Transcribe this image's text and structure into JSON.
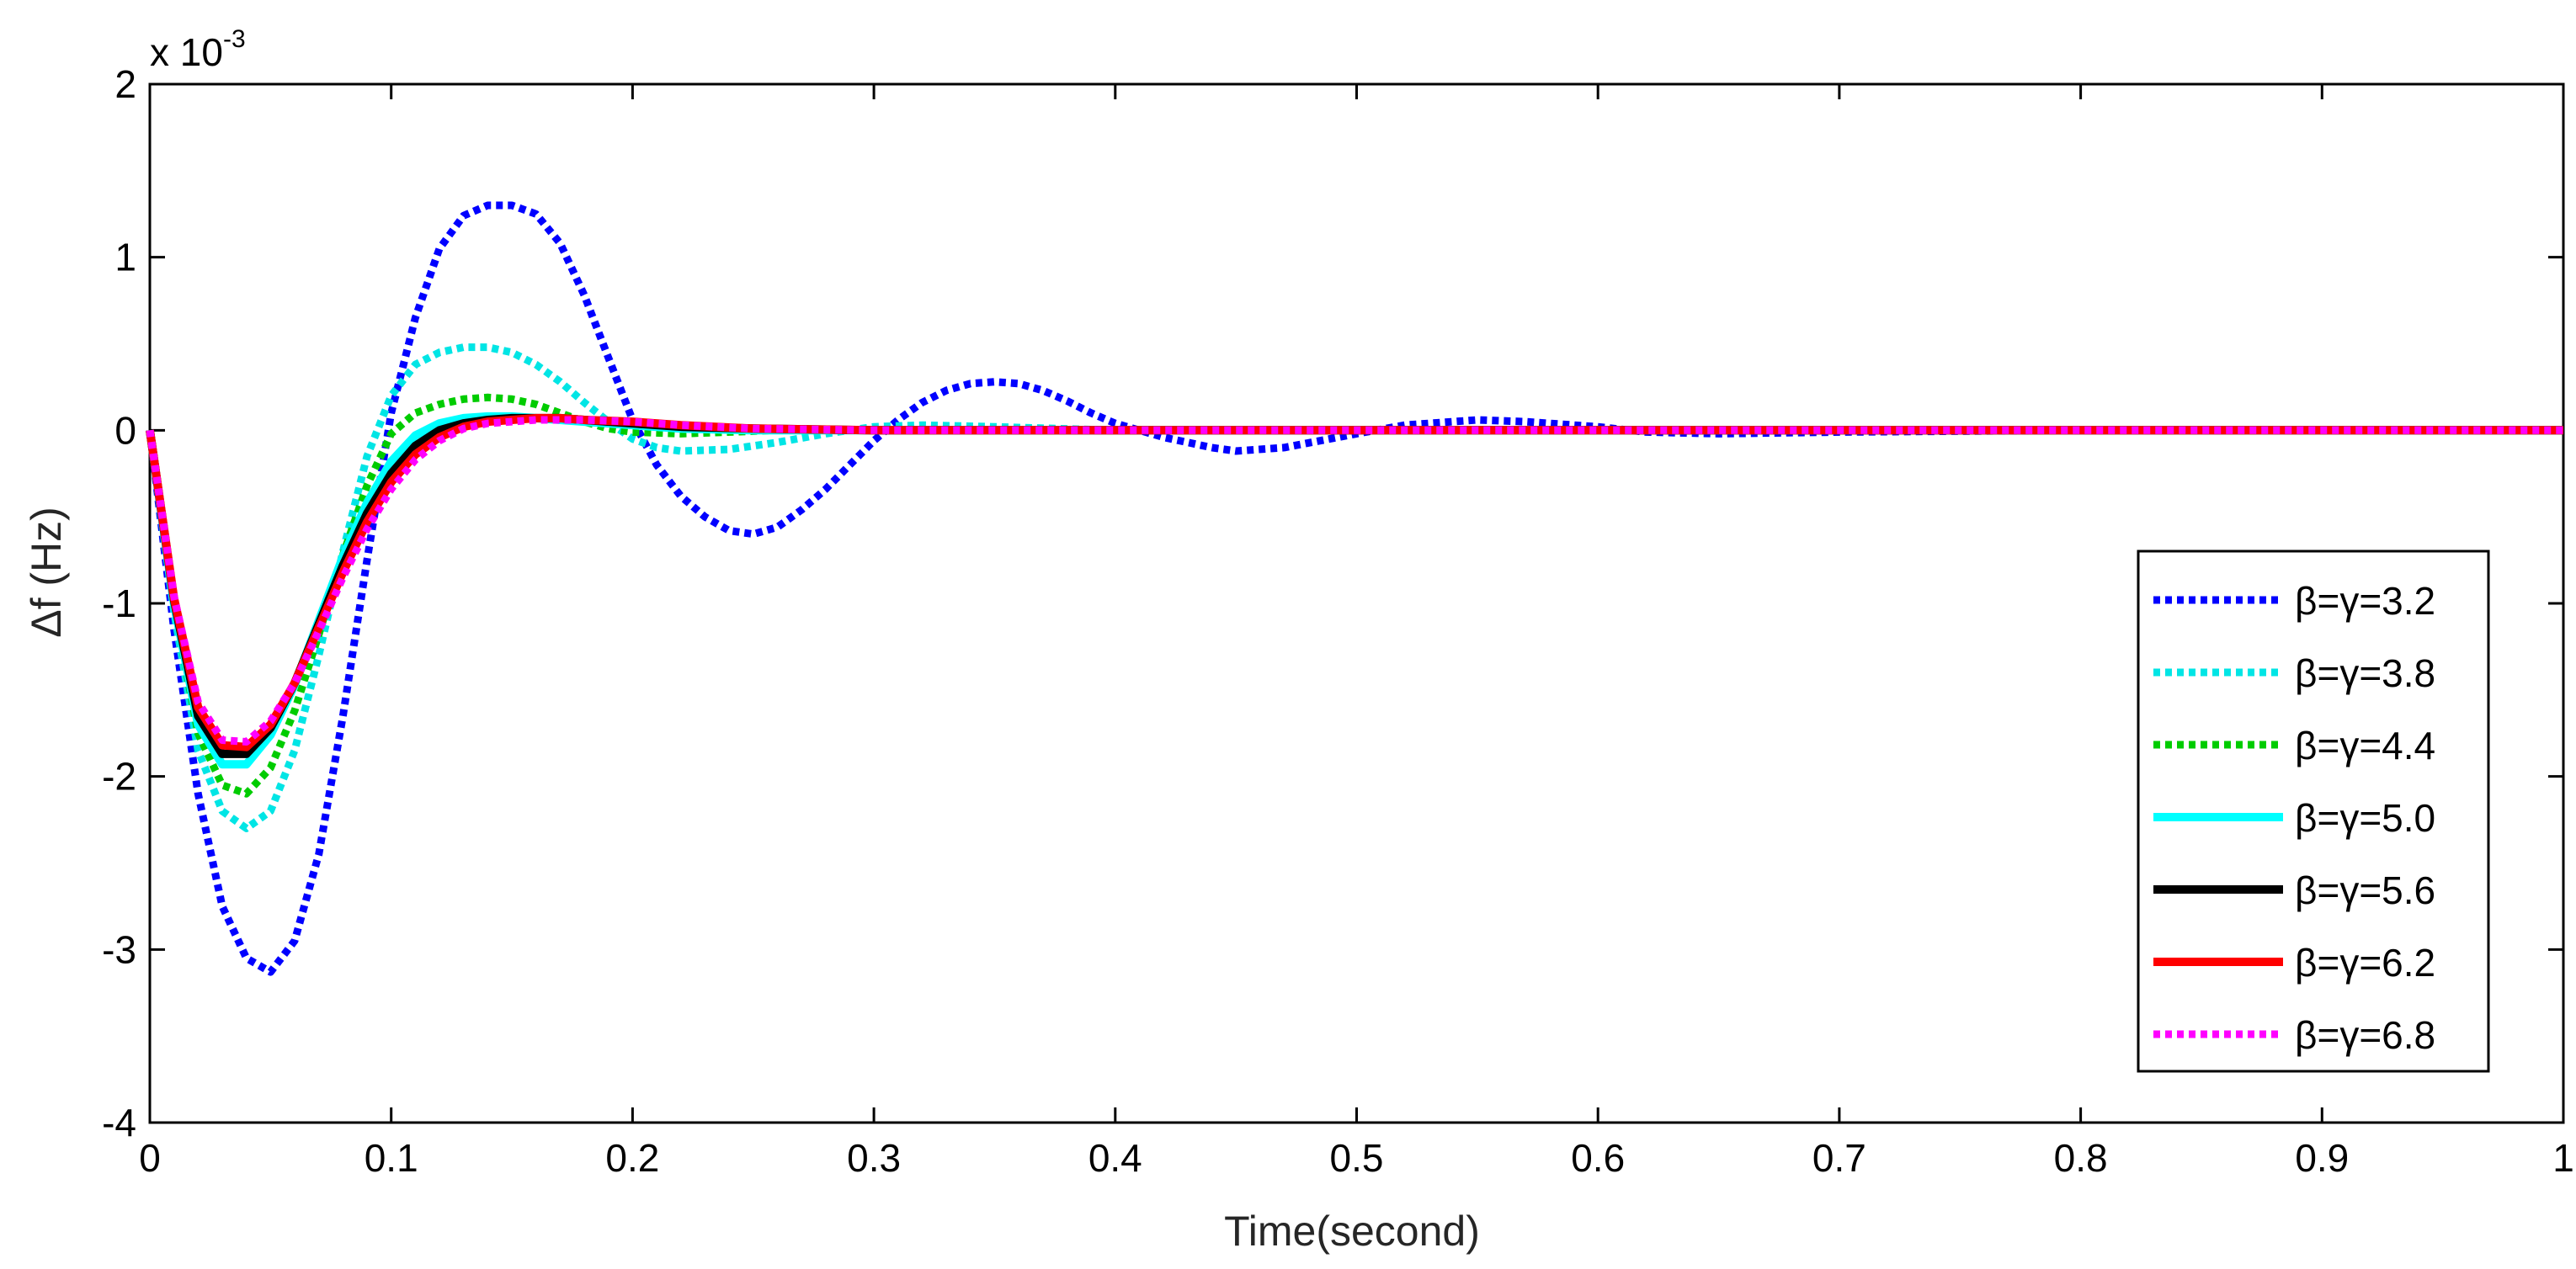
{
  "chart_data": {
    "type": "line",
    "xlabel": "Time(second)",
    "ylabel": "Δf (Hz)",
    "y_multiplier": {
      "base": "x 10",
      "exponent": "-3"
    },
    "xlim": [
      0,
      1
    ],
    "ylim": [
      -4,
      2
    ],
    "x_ticks": [
      0,
      0.1,
      0.2,
      0.3,
      0.4,
      0.5,
      0.6,
      0.7,
      0.8,
      0.9,
      1
    ],
    "x_tick_labels": [
      "0",
      "0.1",
      "0.2",
      "0.3",
      "0.4",
      "0.5",
      "0.6",
      "0.7",
      "0.8",
      "0.9",
      "1"
    ],
    "y_ticks": [
      -4,
      -3,
      -2,
      -1,
      0,
      1,
      2
    ],
    "y_tick_labels": [
      "-4",
      "-3",
      "-2",
      "-1",
      "0",
      "1",
      "2"
    ],
    "grid": false,
    "legend_position": "right",
    "series": [
      {
        "name": "β=γ=3.2",
        "color": "#0000ff",
        "style": "dotted",
        "x": [
          0,
          0.01,
          0.02,
          0.03,
          0.04,
          0.05,
          0.06,
          0.07,
          0.08,
          0.09,
          0.1,
          0.11,
          0.12,
          0.13,
          0.14,
          0.15,
          0.16,
          0.17,
          0.18,
          0.19,
          0.2,
          0.21,
          0.22,
          0.23,
          0.24,
          0.25,
          0.26,
          0.27,
          0.28,
          0.29,
          0.3,
          0.31,
          0.32,
          0.33,
          0.34,
          0.35,
          0.36,
          0.37,
          0.38,
          0.39,
          0.4,
          0.42,
          0.44,
          0.45,
          0.47,
          0.5,
          0.52,
          0.55,
          0.57,
          0.6,
          0.62,
          0.65,
          0.7,
          0.8,
          0.9,
          1
        ],
        "y": [
          0,
          -1.15,
          -2.1,
          -2.75,
          -3.05,
          -3.13,
          -2.95,
          -2.45,
          -1.65,
          -0.75,
          0.1,
          0.65,
          1.05,
          1.24,
          1.3,
          1.3,
          1.25,
          1.08,
          0.78,
          0.42,
          0.06,
          -0.2,
          -0.38,
          -0.5,
          -0.58,
          -0.6,
          -0.56,
          -0.46,
          -0.34,
          -0.2,
          -0.06,
          0.06,
          0.16,
          0.23,
          0.27,
          0.28,
          0.27,
          0.23,
          0.17,
          0.1,
          0.04,
          -0.04,
          -0.1,
          -0.12,
          -0.1,
          -0.02,
          0.03,
          0.06,
          0.05,
          0.02,
          -0.01,
          -0.02,
          -0.01,
          0.0,
          0.0,
          0.0
        ]
      },
      {
        "name": "β=γ=3.8",
        "color": "#00e5e5",
        "style": "dotted",
        "x": [
          0,
          0.01,
          0.02,
          0.03,
          0.04,
          0.05,
          0.06,
          0.07,
          0.08,
          0.09,
          0.1,
          0.11,
          0.12,
          0.13,
          0.14,
          0.15,
          0.16,
          0.17,
          0.18,
          0.19,
          0.2,
          0.21,
          0.22,
          0.24,
          0.26,
          0.28,
          0.3,
          0.32,
          0.35,
          0.4,
          0.5,
          0.6,
          0.8,
          1
        ],
        "y": [
          0,
          -1.05,
          -1.85,
          -2.2,
          -2.3,
          -2.2,
          -1.85,
          -1.3,
          -0.7,
          -0.15,
          0.2,
          0.38,
          0.45,
          0.48,
          0.48,
          0.45,
          0.38,
          0.28,
          0.16,
          0.05,
          -0.05,
          -0.1,
          -0.12,
          -0.11,
          -0.07,
          -0.02,
          0.02,
          0.03,
          0.02,
          0.0,
          0.0,
          0.0,
          0.0,
          0.0
        ]
      },
      {
        "name": "β=γ=4.4",
        "color": "#00cc00",
        "style": "dotted",
        "x": [
          0,
          0.01,
          0.02,
          0.03,
          0.04,
          0.05,
          0.06,
          0.07,
          0.08,
          0.09,
          0.1,
          0.11,
          0.12,
          0.13,
          0.14,
          0.15,
          0.16,
          0.17,
          0.18,
          0.19,
          0.2,
          0.22,
          0.24,
          0.26,
          0.3,
          0.4,
          0.6,
          1
        ],
        "y": [
          0,
          -1.0,
          -1.75,
          -2.05,
          -2.1,
          -1.95,
          -1.62,
          -1.18,
          -0.72,
          -0.32,
          -0.02,
          0.1,
          0.15,
          0.18,
          0.19,
          0.18,
          0.15,
          0.1,
          0.05,
          0.01,
          -0.01,
          -0.02,
          -0.01,
          0.0,
          0.0,
          0.0,
          0.0,
          0.0
        ]
      },
      {
        "name": "β=γ=5.0",
        "color": "#00ffff",
        "style": "solid",
        "x": [
          0,
          0.01,
          0.02,
          0.03,
          0.04,
          0.05,
          0.06,
          0.07,
          0.08,
          0.09,
          0.1,
          0.11,
          0.12,
          0.13,
          0.14,
          0.15,
          0.16,
          0.17,
          0.18,
          0.2,
          0.22,
          0.25,
          0.3,
          0.4,
          0.6,
          1
        ],
        "y": [
          0,
          -1.0,
          -1.7,
          -1.93,
          -1.93,
          -1.76,
          -1.47,
          -1.1,
          -0.73,
          -0.42,
          -0.18,
          -0.03,
          0.04,
          0.07,
          0.08,
          0.08,
          0.07,
          0.06,
          0.05,
          0.03,
          0.01,
          0.0,
          0.0,
          0.0,
          0.0,
          0.0
        ]
      },
      {
        "name": "β=γ=5.6",
        "color": "#000000",
        "style": "solid",
        "x": [
          0,
          0.01,
          0.02,
          0.03,
          0.04,
          0.05,
          0.06,
          0.07,
          0.08,
          0.09,
          0.1,
          0.11,
          0.12,
          0.13,
          0.14,
          0.15,
          0.16,
          0.17,
          0.18,
          0.2,
          0.22,
          0.25,
          0.3,
          0.4,
          0.6,
          1
        ],
        "y": [
          0,
          -0.98,
          -1.65,
          -1.87,
          -1.87,
          -1.72,
          -1.46,
          -1.12,
          -0.78,
          -0.48,
          -0.25,
          -0.09,
          0.0,
          0.04,
          0.06,
          0.07,
          0.07,
          0.07,
          0.06,
          0.04,
          0.02,
          0.01,
          0.0,
          0.0,
          0.0,
          0.0
        ]
      },
      {
        "name": "β=γ=6.2",
        "color": "#ff0000",
        "style": "solid",
        "x": [
          0,
          0.01,
          0.02,
          0.03,
          0.04,
          0.05,
          0.06,
          0.07,
          0.08,
          0.09,
          0.1,
          0.11,
          0.12,
          0.13,
          0.14,
          0.15,
          0.16,
          0.17,
          0.18,
          0.2,
          0.22,
          0.25,
          0.3,
          0.4,
          0.6,
          1
        ],
        "y": [
          0,
          -0.97,
          -1.6,
          -1.82,
          -1.83,
          -1.7,
          -1.46,
          -1.14,
          -0.82,
          -0.53,
          -0.3,
          -0.14,
          -0.04,
          0.02,
          0.05,
          0.06,
          0.07,
          0.07,
          0.06,
          0.05,
          0.03,
          0.01,
          0.0,
          0.0,
          0.0,
          0.0
        ]
      },
      {
        "name": "β=γ=6.8",
        "color": "#ff00ff",
        "style": "dotted",
        "x": [
          0,
          0.01,
          0.02,
          0.03,
          0.04,
          0.05,
          0.06,
          0.07,
          0.08,
          0.09,
          0.1,
          0.11,
          0.12,
          0.13,
          0.14,
          0.15,
          0.16,
          0.17,
          0.18,
          0.2,
          0.22,
          0.25,
          0.3,
          0.4,
          0.6,
          1
        ],
        "y": [
          0,
          -0.96,
          -1.57,
          -1.79,
          -1.8,
          -1.68,
          -1.46,
          -1.16,
          -0.85,
          -0.57,
          -0.34,
          -0.17,
          -0.06,
          0.01,
          0.04,
          0.05,
          0.06,
          0.06,
          0.06,
          0.05,
          0.03,
          0.01,
          0.0,
          0.0,
          0.0,
          0.0
        ]
      }
    ]
  }
}
